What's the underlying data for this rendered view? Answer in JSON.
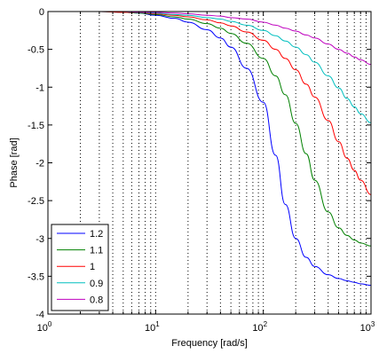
{
  "chart_data": {
    "type": "line",
    "title": "",
    "xlabel": "Frequency [rad/s]",
    "ylabel": "Phase [rad]",
    "xscale": "log",
    "xlim": [
      1,
      1000
    ],
    "ylim": [
      -4,
      0
    ],
    "grid": "x-major-minor-dotted",
    "legend_position": "bottom-left",
    "x_ticks": [
      {
        "base": "10",
        "exp": "0",
        "value": 1
      },
      {
        "base": "10",
        "exp": "1",
        "value": 10
      },
      {
        "base": "10",
        "exp": "2",
        "value": 100
      },
      {
        "base": "10",
        "exp": "3",
        "value": 1000
      }
    ],
    "y_ticks": [
      {
        "label": "0",
        "value": 0
      },
      {
        "label": "-0.5",
        "value": -0.5
      },
      {
        "label": "-1",
        "value": -1
      },
      {
        "label": "-1.5",
        "value": -1.5
      },
      {
        "label": "-2",
        "value": -2
      },
      {
        "label": "-2.5",
        "value": -2.5
      },
      {
        "label": "-3",
        "value": -3
      },
      {
        "label": "-3.5",
        "value": -3.5
      },
      {
        "label": "-4",
        "value": -4
      }
    ],
    "x": [
      3,
      5,
      7,
      10,
      15,
      20,
      30,
      40,
      50,
      70,
      100,
      130,
      160,
      200,
      250,
      300,
      400,
      500,
      600,
      700,
      800,
      1000
    ],
    "series": [
      {
        "name": "1.2",
        "color": "#0000ff",
        "values": [
          0,
          -0.01,
          -0.02,
          -0.05,
          -0.09,
          -0.14,
          -0.24,
          -0.35,
          -0.47,
          -0.75,
          -1.2,
          -1.9,
          -2.55,
          -3.0,
          -3.25,
          -3.37,
          -3.48,
          -3.53,
          -3.56,
          -3.58,
          -3.6,
          -3.62
        ]
      },
      {
        "name": "1.1",
        "color": "#008000",
        "values": [
          0,
          -0.01,
          -0.02,
          -0.04,
          -0.07,
          -0.1,
          -0.16,
          -0.22,
          -0.29,
          -0.42,
          -0.62,
          -0.85,
          -1.1,
          -1.48,
          -1.88,
          -2.23,
          -2.65,
          -2.86,
          -2.96,
          -3.02,
          -3.06,
          -3.1
        ]
      },
      {
        "name": "1",
        "color": "#ff0000",
        "values": [
          0,
          -0.01,
          -0.01,
          -0.03,
          -0.05,
          -0.07,
          -0.11,
          -0.15,
          -0.19,
          -0.27,
          -0.38,
          -0.5,
          -0.62,
          -0.77,
          -0.96,
          -1.13,
          -1.44,
          -1.72,
          -1.94,
          -2.1,
          -2.23,
          -2.42
        ]
      },
      {
        "name": "0.9",
        "color": "#00bfbf",
        "values": [
          0,
          0,
          -0.01,
          -0.02,
          -0.04,
          -0.05,
          -0.08,
          -0.1,
          -0.13,
          -0.18,
          -0.25,
          -0.32,
          -0.39,
          -0.47,
          -0.57,
          -0.67,
          -0.85,
          -1.01,
          -1.15,
          -1.26,
          -1.35,
          -1.47
        ]
      },
      {
        "name": "0.8",
        "color": "#bf00bf",
        "values": [
          0,
          0,
          -0.01,
          -0.01,
          -0.02,
          -0.03,
          -0.05,
          -0.06,
          -0.08,
          -0.1,
          -0.14,
          -0.18,
          -0.22,
          -0.26,
          -0.31,
          -0.35,
          -0.43,
          -0.5,
          -0.55,
          -0.6,
          -0.64,
          -0.7
        ]
      }
    ]
  }
}
